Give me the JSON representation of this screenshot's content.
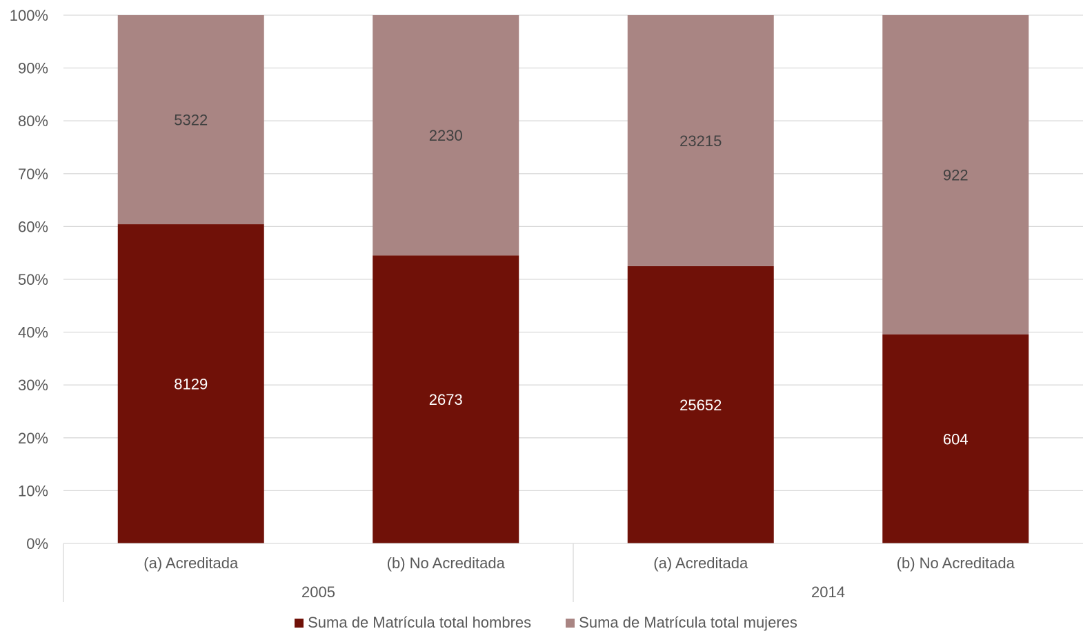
{
  "chart_data": {
    "type": "bar",
    "stacked": "percent",
    "categories": [
      "(a) Acreditada",
      "(b) No Acreditada",
      "(a) Acreditada",
      "(b) No Acreditada"
    ],
    "groups": [
      {
        "label": "2005",
        "categories": [
          0,
          1
        ]
      },
      {
        "label": "2014",
        "categories": [
          2,
          3
        ]
      }
    ],
    "series": [
      {
        "name": "Suma de Matrícula total hombres",
        "values": [
          8129,
          2673,
          25652,
          604
        ],
        "color": "#701108",
        "label_color": "#ffffff"
      },
      {
        "name": "Suma de Matrícula total mujeres",
        "values": [
          5322,
          2230,
          23215,
          922
        ],
        "color": "#a98583",
        "label_color": "#404040"
      }
    ],
    "yticks": [
      "0%",
      "10%",
      "20%",
      "30%",
      "40%",
      "50%",
      "60%",
      "70%",
      "80%",
      "90%",
      "100%"
    ],
    "ylim": [
      0,
      100
    ],
    "grid": true,
    "legend_position": "bottom"
  }
}
